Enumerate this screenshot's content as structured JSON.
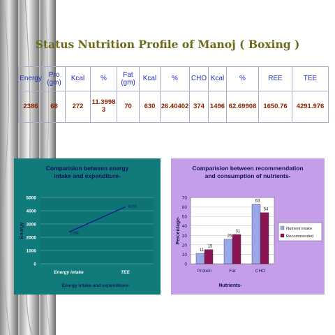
{
  "title": "Status Nutrition Profile of Manoj ( Boxing )",
  "table": {
    "headers": [
      "Energy",
      "Pro\n(gm)",
      "Kcal",
      "%",
      "Fat\n(gm)",
      "Kcal",
      "%",
      "CHO",
      "Kcal",
      "%",
      "REE",
      "TEE"
    ],
    "values": [
      "2386",
      "68",
      "272",
      "11.3998\n3",
      "70",
      "630",
      "26.40402",
      "374",
      "1496",
      "62.69908",
      "1650.76",
      "4291.976"
    ]
  },
  "chart_data": [
    {
      "type": "line",
      "title": "Comparision between energy intake and expenditure-",
      "xlabel": "Energy intake and expenditure-",
      "ylabel": "Energy",
      "categories": [
        "Energy intake",
        "TEE"
      ],
      "series": [
        {
          "values": [
            2386,
            4292
          ],
          "labels": [
            "2386",
            "4292"
          ]
        }
      ],
      "ylim": [
        0,
        5000
      ],
      "yticks": [
        0,
        1000,
        2000,
        3000,
        4000,
        5000
      ],
      "grid": true,
      "colors": {
        "background": "#117a7a",
        "plot": "#0e7373",
        "line": "#0a1f8f",
        "text": "#ffffff"
      }
    },
    {
      "type": "bar",
      "title": "Comparision between recommendation and consumption of nutrients-",
      "xlabel": "Nutrients-",
      "ylabel": "Percentage-",
      "categories": [
        "Protein",
        "Fat",
        "CHO"
      ],
      "series": [
        {
          "name": "Nutrient intake",
          "values": [
            11,
            26,
            63
          ],
          "color": "#9aa8ea"
        },
        {
          "name": "Recommended",
          "values": [
            15,
            31,
            54
          ],
          "color": "#8a1454"
        }
      ],
      "ylim": [
        0,
        70
      ],
      "yticks": [
        0,
        10,
        20,
        30,
        40,
        50,
        60,
        70
      ],
      "legend": "right",
      "grid": true,
      "colors": {
        "background": "#c49ee8",
        "plot": "#ffffff",
        "text": "#1a1a60"
      }
    }
  ]
}
